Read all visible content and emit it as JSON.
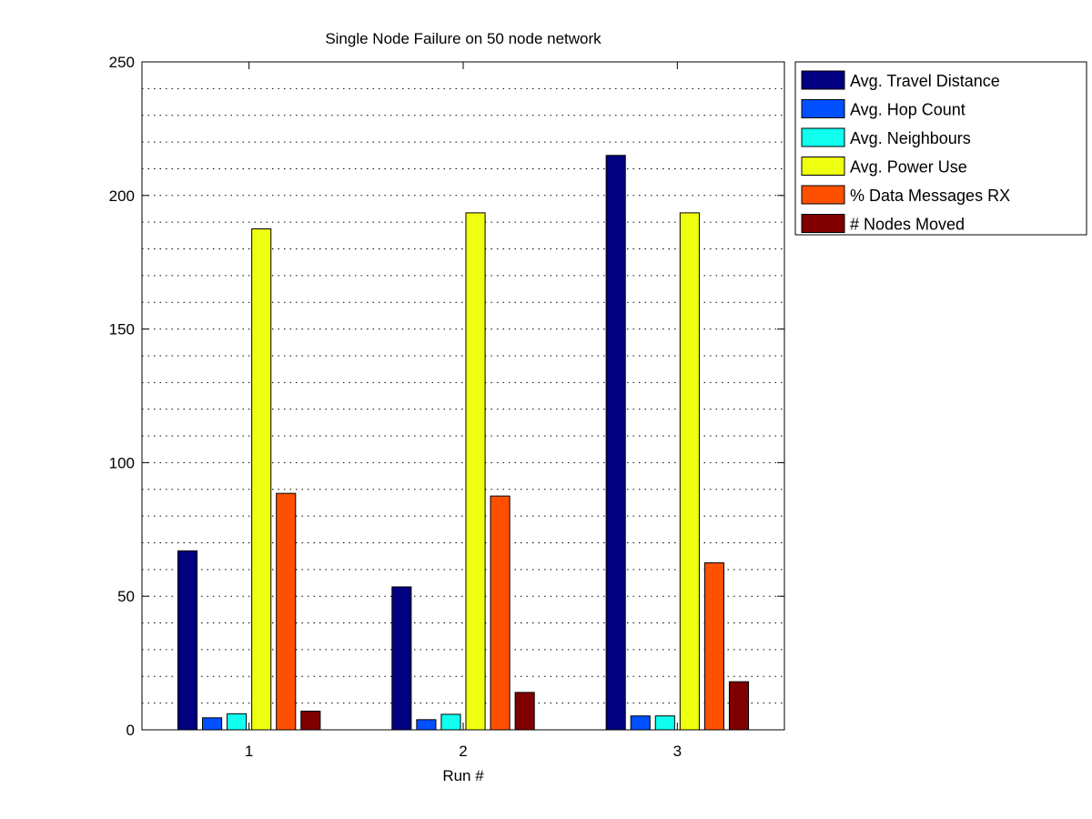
{
  "chart_data": {
    "type": "bar",
    "title": "Single Node Failure on 50 node network",
    "xlabel": "Run #",
    "ylabel": "",
    "categories": [
      "1",
      "2",
      "3"
    ],
    "ylim": [
      0,
      250
    ],
    "yticks": [
      0,
      50,
      100,
      150,
      200,
      250
    ],
    "grid": "y-dotted",
    "legend_position": "outside-top-right",
    "series": [
      {
        "name": "Avg. Travel Distance",
        "color": "#000080",
        "values": [
          67,
          53.5,
          215
        ]
      },
      {
        "name": "Avg. Hop Count",
        "color": "#0050ff",
        "values": [
          4.5,
          3.8,
          5.2
        ]
      },
      {
        "name": "Avg. Neighbours",
        "color": "#10ffef",
        "values": [
          6,
          5.8,
          5.2
        ]
      },
      {
        "name": "Avg. Power Use",
        "color": "#efff10",
        "values": [
          187.5,
          193.5,
          193.5
        ]
      },
      {
        "name": "% Data Messages RX",
        "color": "#ff5000",
        "values": [
          88.5,
          87.5,
          62.5
        ]
      },
      {
        "name": "# Nodes Moved",
        "color": "#800000",
        "values": [
          7,
          14,
          18
        ]
      }
    ]
  }
}
